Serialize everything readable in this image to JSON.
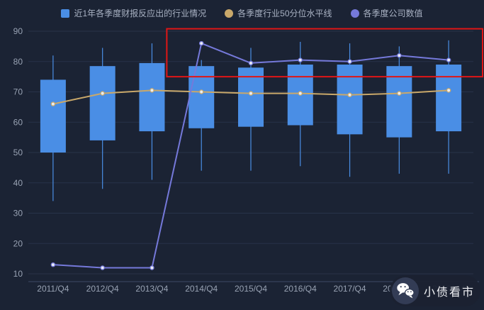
{
  "legend": {
    "items": [
      {
        "label": "近1年各季度财报反应出的行业情况",
        "color": "#4a8ee5",
        "shape": "square"
      },
      {
        "label": "各季度行业50分位水平线",
        "color": "#c9a86a",
        "shape": "circle"
      },
      {
        "label": "各季度公司数值",
        "color": "#7579da",
        "shape": "circle"
      }
    ]
  },
  "watermark": {
    "text": "小债看市",
    "icon": "wechat-icon"
  },
  "colors": {
    "background": "#1b2334",
    "grid": "#283349",
    "axis_label": "#98a2b3",
    "axis_line": "#3d4a66",
    "legend_text": "#a9b2c3",
    "point_fill": "#e9edf5"
  },
  "chart_data": {
    "type": "candlestick+line",
    "title": "",
    "categories": [
      "2011/Q4",
      "2012/Q4",
      "2013/Q4",
      "2014/Q4",
      "2015/Q4",
      "2016/Q4",
      "2017/Q4",
      "2018/Q4",
      "2019/Q4"
    ],
    "ylim": [
      10,
      90
    ],
    "y_ticks": [
      10,
      20,
      30,
      40,
      50,
      60,
      70,
      80,
      90
    ],
    "grid": true,
    "legend_position": "top",
    "series": [
      {
        "id": "industry-range",
        "name": "近1年各季度财报反应出的行业情况",
        "type": "candlestick",
        "color": "#4a8ee5",
        "values_format": "[whisker_low, box_bottom, box_top, whisker_high]",
        "values": [
          [
            34,
            50,
            74,
            82
          ],
          [
            38,
            54,
            78.5,
            84.5
          ],
          [
            41,
            57,
            79.5,
            86
          ],
          [
            44,
            58,
            78.5,
            80.5
          ],
          [
            44,
            58.5,
            78,
            84.5
          ],
          [
            45.5,
            59,
            79,
            86.5
          ],
          [
            42,
            56,
            79,
            86
          ],
          [
            43,
            55,
            78.5,
            85
          ],
          [
            43,
            57,
            79,
            87
          ]
        ]
      },
      {
        "id": "median",
        "name": "各季度行业50分位水平线",
        "type": "line",
        "color": "#c9a86a",
        "values": [
          66,
          69.5,
          70.5,
          70,
          69.5,
          69.5,
          69,
          69.5,
          70.5
        ]
      },
      {
        "id": "company",
        "name": "各季度公司数值",
        "type": "line",
        "color": "#7579da",
        "values": [
          13,
          12,
          12,
          86,
          79.5,
          80.5,
          80,
          82,
          80.5
        ]
      }
    ],
    "annotations": [
      {
        "type": "rect",
        "note": "red highlight of high company values from 2014/Q4 onward",
        "color": "#e01616",
        "x_start_band": 2.8,
        "x_end_band": 9.2,
        "y_min": 75,
        "y_max": 90.8
      }
    ]
  }
}
